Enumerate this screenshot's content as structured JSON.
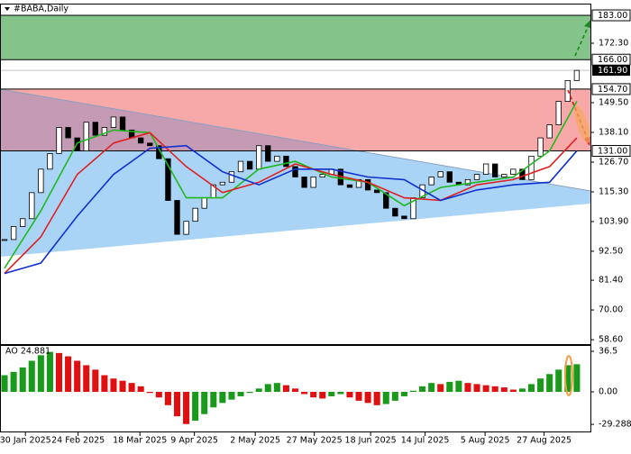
{
  "chart_data": [
    {
      "type": "candlestick",
      "title": "#BABA,Daily",
      "close": [
        97,
        102,
        105,
        115,
        124,
        130,
        140,
        136,
        131,
        142,
        137,
        140,
        144,
        139,
        136,
        134,
        133,
        128,
        112,
        99,
        104,
        109,
        113,
        118,
        119,
        123,
        127,
        124,
        133,
        127,
        129,
        125,
        121,
        117,
        121,
        122,
        124,
        118,
        117,
        120,
        116,
        115,
        109,
        106,
        105,
        113,
        118,
        121,
        123,
        119,
        118,
        120,
        122,
        126,
        121,
        122,
        124,
        120,
        129,
        136,
        141,
        150,
        158,
        161.9
      ],
      "up_color": "#ffffff",
      "down_color": "#000000",
      "ma_x": [
        0,
        4,
        8,
        12,
        16,
        20,
        24,
        28,
        32,
        36,
        40,
        44,
        48,
        52,
        56,
        60,
        63
      ],
      "series": [
        {
          "color": "#1fb81f",
          "values": [
            86,
            108,
            134,
            139,
            138,
            113,
            113,
            124,
            127,
            121,
            119,
            110,
            117,
            119,
            121,
            131,
            150
          ]
        },
        {
          "color": "#e02020",
          "values": [
            84,
            98,
            122,
            134,
            138,
            125,
            115,
            119,
            126,
            122,
            119,
            113,
            112,
            118,
            120,
            125,
            136
          ]
        },
        {
          "color": "#1030d0",
          "values": [
            84,
            88,
            106,
            122,
            132,
            133,
            123,
            118,
            124,
            124,
            121,
            120,
            112,
            116,
            118,
            119,
            131
          ]
        }
      ],
      "xlim": [
        -0.5,
        64.5
      ],
      "ylim": [
        56.9,
        187.5
      ],
      "yticks": [
        {
          "value": 172.3,
          "label": "172.30"
        },
        {
          "value": 149.5,
          "label": "149.50"
        },
        {
          "value": 138.1,
          "label": "138.10"
        },
        {
          "value": 126.7,
          "label": "126.70"
        },
        {
          "value": 115.3,
          "label": "115.30"
        },
        {
          "value": 103.9,
          "label": "103.90"
        },
        {
          "value": 92.5,
          "label": "92.50"
        },
        {
          "value": 81.4,
          "label": "81.40"
        },
        {
          "value": 70,
          "label": "70.00"
        },
        {
          "value": 58.6,
          "label": "58.60"
        }
      ],
      "levels": [
        {
          "value": 183,
          "label": "183.00"
        },
        {
          "value": 166,
          "label": "166.00"
        },
        {
          "value": 154.7,
          "label": "154.70"
        },
        {
          "value": 131,
          "label": "131.00"
        }
      ],
      "current_price": {
        "value": 161.9,
        "label": "161.90"
      },
      "xticks": [
        {
          "value": 2.3,
          "label": "30 Jan 2025"
        },
        {
          "value": 8.1,
          "label": "24 Feb 2025"
        },
        {
          "value": 14.9,
          "label": "18 Mar 2025"
        },
        {
          "value": 20.9,
          "label": "9 Apr 2025"
        },
        {
          "value": 27.6,
          "label": "2 May 2025"
        },
        {
          "value": 34.1,
          "label": "27 May 2025"
        },
        {
          "value": 40.3,
          "label": "18 Jun 2025"
        },
        {
          "value": 46.3,
          "label": "14 Jul 2025"
        },
        {
          "value": 52.9,
          "label": "5 Aug 2025"
        },
        {
          "value": 59.4,
          "label": "27 Aug 2025"
        }
      ]
    },
    {
      "type": "bar",
      "title": "AO 24.881",
      "values": [
        15,
        18,
        22,
        28,
        33,
        36,
        35,
        32,
        28,
        24,
        20,
        15,
        12,
        10,
        8,
        5,
        -1,
        -5,
        -12,
        -22,
        -29,
        -26,
        -20,
        -14,
        -10,
        -7,
        -4,
        -1,
        3,
        7,
        8,
        6,
        3,
        -2,
        -5,
        -6,
        -4,
        -2,
        -5,
        -8,
        -10,
        -12,
        -11,
        -8,
        -4,
        1,
        5,
        8,
        7,
        9,
        10,
        8,
        7,
        6,
        5,
        4,
        2,
        3,
        7,
        12,
        16,
        20,
        24,
        24.881
      ],
      "up_color": "#1a9a1a",
      "down_color": "#e01010",
      "ylim": [
        -36.5,
        42.2
      ],
      "yticks": [
        36.5,
        {
          "value": 0,
          "label": "0.00"
        },
        -29.288
      ]
    }
  ]
}
